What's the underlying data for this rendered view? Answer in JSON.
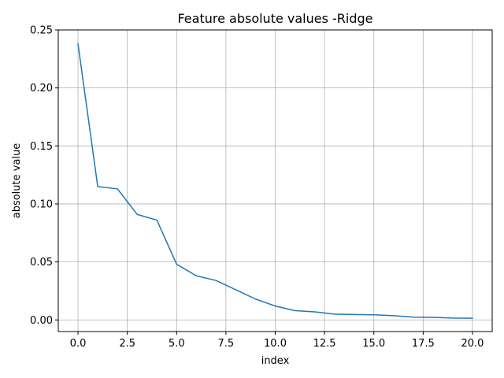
{
  "chart_data": {
    "type": "line",
    "title": "Feature absolute values -Ridge",
    "xlabel": "index",
    "ylabel": "absolute value",
    "xlim": [
      -1,
      21
    ],
    "ylim": [
      -0.01,
      0.25
    ],
    "grid": true,
    "x_ticks": [
      0.0,
      2.5,
      5.0,
      7.5,
      10.0,
      12.5,
      15.0,
      17.5,
      20.0
    ],
    "x_tick_labels": [
      "0.0",
      "2.5",
      "5.0",
      "7.5",
      "10.0",
      "12.5",
      "15.0",
      "17.5",
      "20.0"
    ],
    "y_ticks": [
      0.0,
      0.05,
      0.1,
      0.15,
      0.2,
      0.25
    ],
    "y_tick_labels": [
      "0.00",
      "0.05",
      "0.10",
      "0.15",
      "0.20",
      "0.25"
    ],
    "series": [
      {
        "color": "#1f77b4",
        "x": [
          0,
          1,
          2,
          3,
          4,
          5,
          6,
          7,
          8,
          9,
          10,
          11,
          12,
          13,
          14,
          15,
          16,
          17,
          18,
          19,
          20
        ],
        "y": [
          0.238,
          0.115,
          0.113,
          0.091,
          0.086,
          0.048,
          0.038,
          0.034,
          0.026,
          0.018,
          0.012,
          0.008,
          0.007,
          0.005,
          0.0047,
          0.0044,
          0.0037,
          0.0024,
          0.0022,
          0.0016,
          0.0015
        ]
      }
    ]
  }
}
